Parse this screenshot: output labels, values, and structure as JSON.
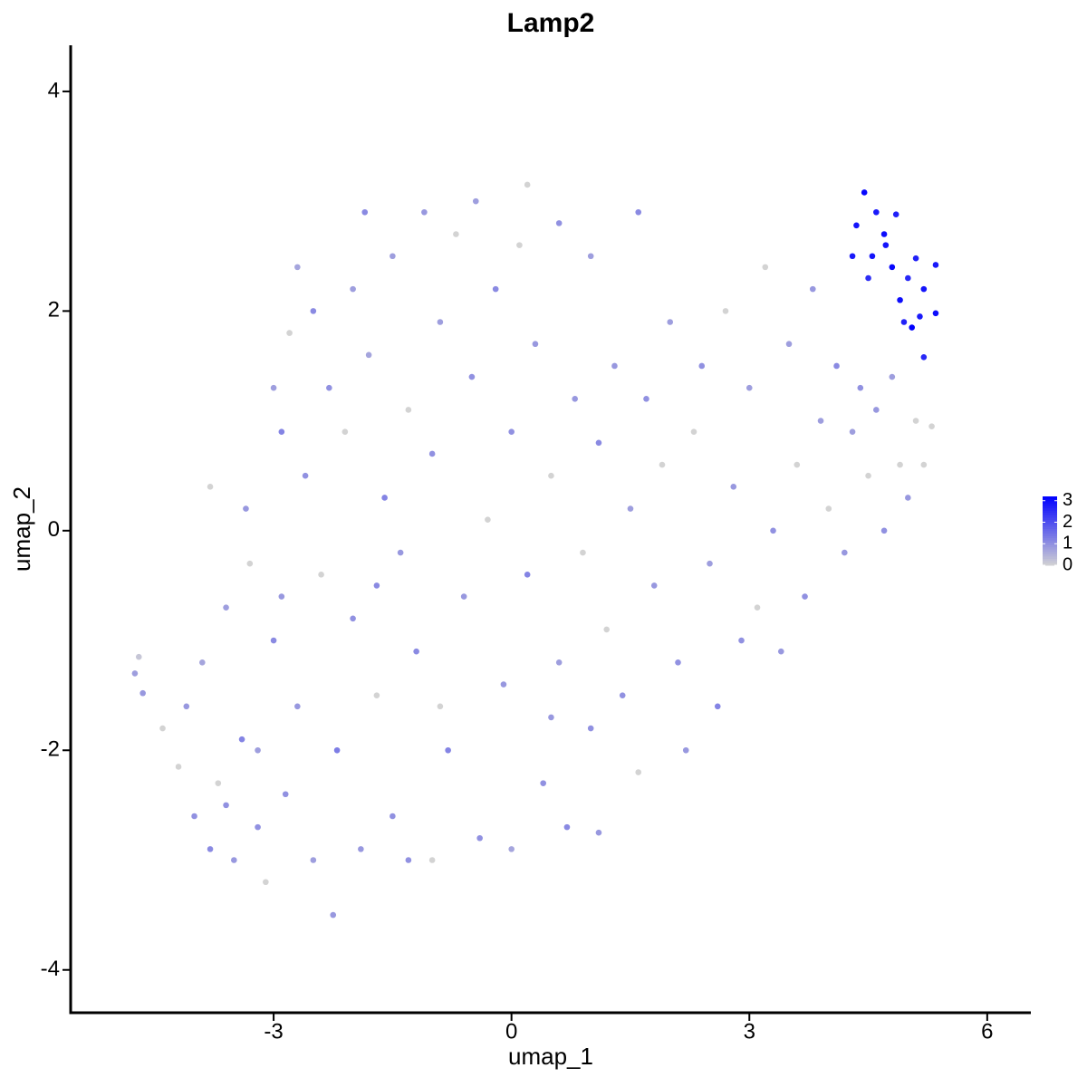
{
  "chart_data": {
    "type": "scatter",
    "title": "Lamp2",
    "x_label": "umap_1",
    "y_label": "umap_2",
    "xlim": [
      -5.56,
      6.55
    ],
    "xticks": [
      -3,
      0,
      3,
      6
    ],
    "ylim": [
      -4.39,
      4.42
    ],
    "yticks": [
      -4,
      -2,
      0,
      2,
      4
    ],
    "colors": [
      "#d3d3d3",
      "#0000ff"
    ],
    "colorbar_lim": [
      0,
      3.2
    ],
    "colorbar_ticks": [
      0,
      1,
      2,
      3
    ],
    "x": [
      4.45,
      4.6,
      4.35,
      4.7,
      4.85,
      4.55,
      4.3,
      4.8,
      5.0,
      5.2,
      5.35,
      4.9,
      5.05,
      4.95,
      5.15,
      5.35,
      4.5,
      5.2,
      4.72,
      5.1,
      -4.75,
      -4.7,
      -4.65,
      -4.4,
      -4.2,
      -4.1,
      -4.0,
      -3.9,
      -3.8,
      -3.7,
      -3.6,
      -3.5,
      -3.4,
      -3.35,
      -3.3,
      -3.2,
      -3.1,
      -3.0,
      -3.0,
      -2.9,
      -2.85,
      -2.8,
      -2.7,
      -2.6,
      -2.5,
      -2.5,
      -2.4,
      -2.3,
      -2.25,
      -2.2,
      -2.1,
      -2.0,
      -2.0,
      -1.9,
      -1.85,
      -1.8,
      -1.7,
      -1.6,
      -1.5,
      -1.5,
      -1.4,
      -1.3,
      -1.2,
      -1.1,
      -1.0,
      -1.0,
      -0.9,
      -0.8,
      -0.7,
      -0.6,
      -0.5,
      -0.45,
      -0.4,
      -0.3,
      -0.2,
      -0.1,
      0.0,
      0.0,
      0.1,
      0.2,
      0.2,
      0.3,
      0.4,
      0.5,
      0.6,
      0.6,
      0.7,
      0.8,
      0.9,
      1.0,
      1.0,
      1.1,
      1.1,
      1.2,
      1.3,
      1.4,
      1.5,
      1.6,
      1.6,
      1.7,
      1.8,
      1.9,
      2.0,
      2.1,
      2.2,
      2.3,
      2.4,
      2.5,
      2.6,
      2.7,
      2.8,
      2.9,
      3.0,
      3.1,
      3.2,
      3.3,
      3.4,
      3.5,
      3.6,
      3.7,
      3.8,
      3.9,
      4.0,
      4.1,
      4.2,
      4.3,
      4.4,
      4.5,
      4.6,
      4.7,
      4.8,
      4.9,
      5.0,
      5.1,
      5.3,
      5.2,
      -3.8,
      -3.2,
      -2.9,
      -2.7,
      -1.3,
      -3.6,
      -1.7,
      0.5,
      -0.9
    ],
    "y": [
      3.08,
      2.9,
      2.78,
      2.7,
      2.88,
      2.5,
      2.5,
      2.4,
      2.3,
      2.2,
      2.42,
      2.1,
      1.85,
      1.9,
      1.95,
      1.98,
      2.3,
      1.58,
      2.6,
      2.48,
      -1.3,
      -1.15,
      -1.48,
      -1.8,
      -2.15,
      -1.6,
      -2.6,
      -1.2,
      -2.9,
      -2.3,
      -0.7,
      -3.0,
      -1.9,
      0.2,
      -0.3,
      -2.7,
      -3.2,
      -1.0,
      1.3,
      0.9,
      -2.4,
      1.8,
      -1.6,
      0.5,
      2.0,
      -3.0,
      -0.4,
      1.3,
      -3.5,
      -2.0,
      0.9,
      2.2,
      -0.8,
      -2.9,
      2.9,
      1.6,
      -1.5,
      0.3,
      2.5,
      -2.6,
      -0.2,
      1.1,
      -1.1,
      2.9,
      -3.0,
      0.7,
      1.9,
      -2.0,
      2.7,
      -0.6,
      1.4,
      3.0,
      -2.8,
      0.1,
      2.2,
      -1.4,
      0.9,
      -2.9,
      2.6,
      -0.4,
      3.15,
      1.7,
      -2.3,
      0.5,
      2.8,
      -1.2,
      -2.7,
      1.2,
      -0.2,
      2.5,
      -1.8,
      0.8,
      -2.75,
      -0.9,
      1.5,
      -1.5,
      0.2,
      2.9,
      -2.2,
      1.2,
      -0.5,
      0.6,
      1.9,
      -1.2,
      -2.0,
      0.9,
      1.5,
      -0.3,
      -1.6,
      2.0,
      0.4,
      -1.0,
      1.3,
      -0.7,
      2.4,
      0.0,
      -1.1,
      1.7,
      0.6,
      -0.6,
      2.2,
      1.0,
      0.2,
      1.5,
      -0.2,
      0.9,
      1.3,
      0.5,
      1.1,
      0.0,
      1.4,
      0.6,
      0.3,
      1.0,
      0.95,
      0.6,
      0.4,
      -2.0,
      -0.6,
      2.4,
      -3.0,
      -2.5,
      -0.5,
      -1.7,
      -1.6
    ],
    "values": [
      3.1,
      2.8,
      2.9,
      3.0,
      2.7,
      2.9,
      2.8,
      3.1,
      2.6,
      2.9,
      2.8,
      3.0,
      3.2,
      2.7,
      2.8,
      3.0,
      2.5,
      2.6,
      2.9,
      2.7,
      0.8,
      0.2,
      0.9,
      0,
      0,
      0.9,
      1.0,
      0.7,
      1.1,
      0,
      0.8,
      0.9,
      1.2,
      0.9,
      0,
      1.0,
      0,
      1.1,
      0.8,
      1.2,
      1.0,
      0,
      0.9,
      1.0,
      1.1,
      0.8,
      0,
      1.0,
      0.9,
      1.3,
      0,
      0.8,
      1.0,
      0.9,
      1.1,
      0.7,
      0,
      1.2,
      0.8,
      1.0,
      0.9,
      0,
      1.1,
      0.9,
      0,
      1.0,
      0.8,
      1.2,
      0,
      0.9,
      1.0,
      0.8,
      1.0,
      0,
      1.1,
      0.9,
      1.0,
      0.7,
      0,
      1.2,
      0,
      0.9,
      1.0,
      0,
      1.0,
      0.8,
      1.1,
      0.9,
      0,
      0.8,
      1.0,
      1.1,
      0.9,
      0,
      0.9,
      1.0,
      0.8,
      1.1,
      0,
      1.0,
      0.9,
      0,
      0.8,
      1.0,
      0.9,
      0,
      1.0,
      0.8,
      1.2,
      0,
      0.9,
      1.0,
      0.8,
      0,
      0,
      1.0,
      0.9,
      0.8,
      0,
      1.0,
      0.9,
      0.8,
      0,
      1.1,
      0.9,
      0.8,
      1.0,
      0,
      0.9,
      1.0,
      0.8,
      0,
      0.9,
      0,
      0,
      0,
      0,
      0.8,
      0.9,
      0.7,
      1.0,
      1.0,
      1.1,
      0.9,
      0
    ]
  }
}
